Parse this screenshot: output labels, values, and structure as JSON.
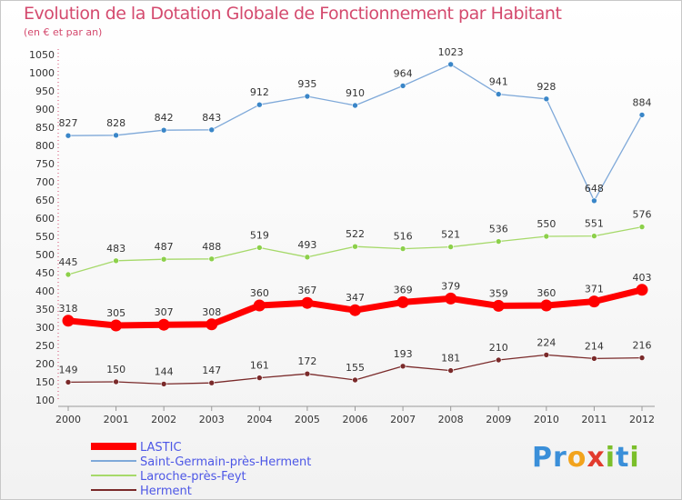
{
  "header": {
    "title": "Evolution de la Dotation Globale de Fonctionnement par Habitant",
    "subtitle": "(en € et par an)"
  },
  "logo": {
    "text": "Proxiti",
    "letters": [
      "P",
      "r",
      "o",
      "x",
      "i",
      "t",
      "i"
    ],
    "colors": [
      "#3a8fd9",
      "#3a8fd9",
      "#f2a31c",
      "#e23b2e",
      "#7bbf2a",
      "#3a8fd9",
      "#7bbf2a"
    ]
  },
  "chart_data": {
    "type": "line",
    "title": "Evolution de la Dotation Globale de Fonctionnement par Habitant",
    "subtitle": "(en € et par an)",
    "x": [
      "2000",
      "2001",
      "2002",
      "2003",
      "2004",
      "2005",
      "2006",
      "2007",
      "2008",
      "2009",
      "2010",
      "2011",
      "2012"
    ],
    "ylim": [
      100,
      1050
    ],
    "yticks": [
      100,
      150,
      200,
      250,
      300,
      350,
      400,
      450,
      500,
      550,
      600,
      650,
      700,
      750,
      800,
      850,
      900,
      950,
      1000,
      1050
    ],
    "grid": false,
    "legend_position": "bottom-left",
    "series": [
      {
        "name": "LASTIC",
        "color": "#ff0000",
        "point_color": "#ff0000",
        "width": 7,
        "values": [
          318,
          305,
          307,
          308,
          360,
          367,
          347,
          369,
          379,
          359,
          360,
          371,
          403
        ]
      },
      {
        "name": "Saint-Germain-près-Herment",
        "color": "#7fa9d9",
        "point_color": "#3a86c8",
        "width": 1.3,
        "values": [
          827,
          828,
          842,
          843,
          912,
          935,
          910,
          964,
          1023,
          941,
          928,
          648,
          884
        ]
      },
      {
        "name": "Laroche-près-Feyt",
        "color": "#a6d96a",
        "point_color": "#8cd04a",
        "width": 1.3,
        "values": [
          445,
          483,
          487,
          488,
          519,
          493,
          522,
          516,
          521,
          536,
          550,
          551,
          576
        ]
      },
      {
        "name": "Herment",
        "color": "#7a2a2a",
        "point_color": "#7a2a2a",
        "width": 1.3,
        "values": [
          149,
          150,
          144,
          147,
          161,
          172,
          155,
          193,
          181,
          210,
          224,
          214,
          216
        ]
      }
    ]
  }
}
